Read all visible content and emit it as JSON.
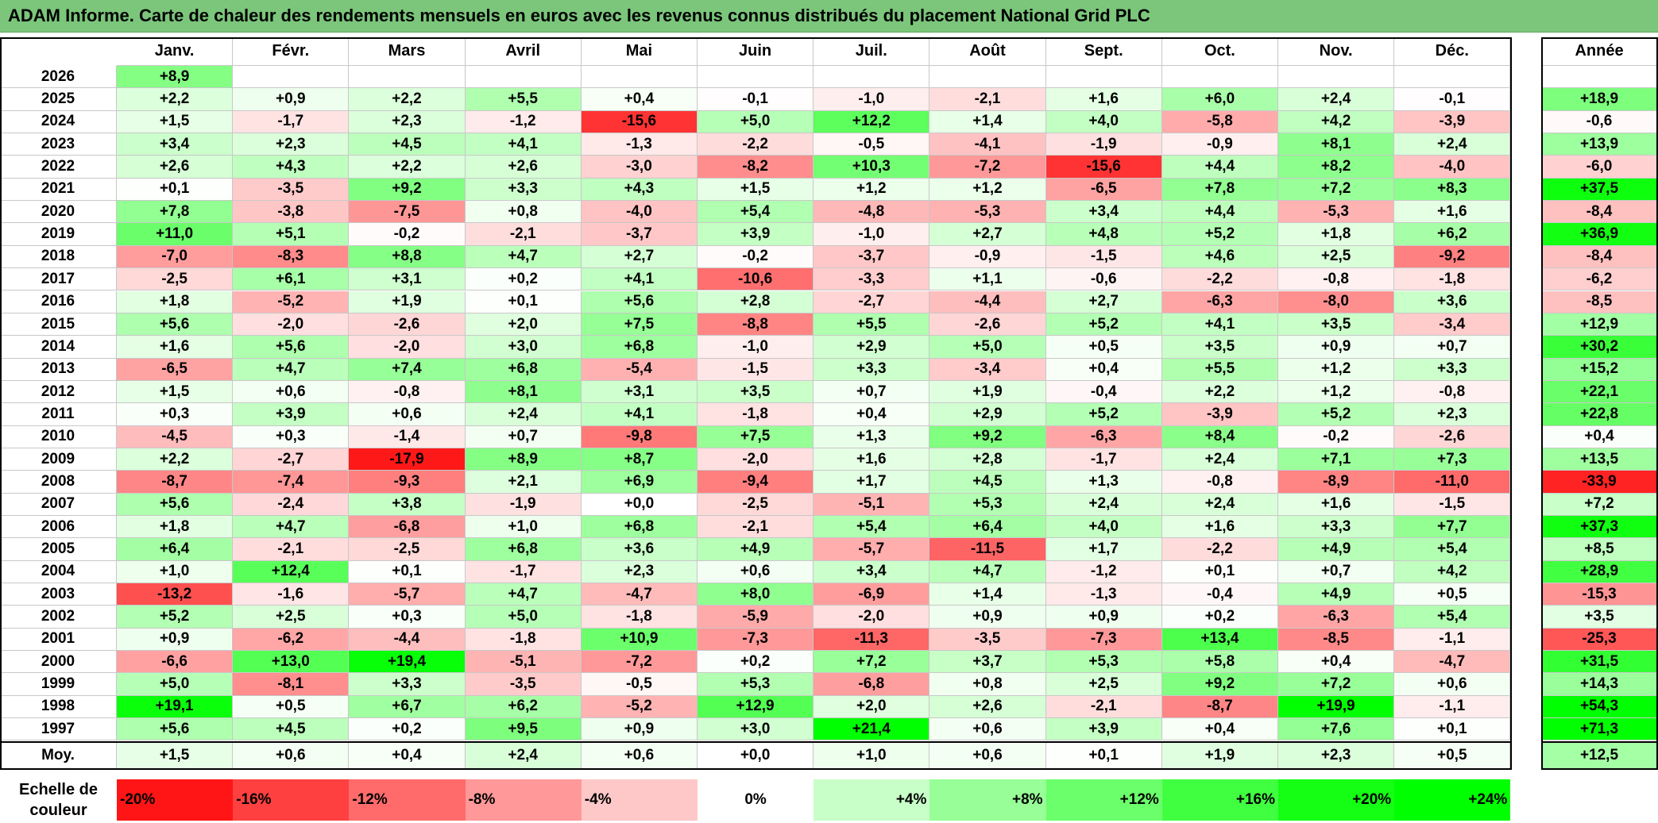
{
  "title": "ADAM Informe. Carte de chaleur des rendements mensuels en euros avec les revenus connus distribués du placement National Grid PLC",
  "chart_data": {
    "type": "heatmap",
    "months": [
      "Janv.",
      "Févr.",
      "Mars",
      "Avril",
      "Mai",
      "Juin",
      "Juil.",
      "Août",
      "Sept.",
      "Oct.",
      "Nov.",
      "Déc."
    ],
    "year_header": "Année",
    "rows": [
      {
        "year": "2026",
        "values": [
          "+8,9",
          "",
          "",
          "",
          "",
          "",
          "",
          "",
          "",
          "",
          "",
          ""
        ],
        "annual": ""
      },
      {
        "year": "2025",
        "values": [
          "+2,2",
          "+0,9",
          "+2,2",
          "+5,5",
          "+0,4",
          "-0,1",
          "-1,0",
          "-2,1",
          "+1,6",
          "+6,0",
          "+2,4",
          "-0,1"
        ],
        "annual": "+18,9"
      },
      {
        "year": "2024",
        "values": [
          "+1,5",
          "-1,7",
          "+2,3",
          "-1,2",
          "-15,6",
          "+5,0",
          "+12,2",
          "+1,4",
          "+4,0",
          "-5,8",
          "+4,2",
          "-3,9"
        ],
        "annual": "-0,6"
      },
      {
        "year": "2023",
        "values": [
          "+3,4",
          "+2,3",
          "+4,5",
          "+4,1",
          "-1,3",
          "-2,2",
          "-0,5",
          "-4,1",
          "-1,9",
          "-0,9",
          "+8,1",
          "+2,4"
        ],
        "annual": "+13,9"
      },
      {
        "year": "2022",
        "values": [
          "+2,6",
          "+4,3",
          "+2,2",
          "+2,6",
          "-3,0",
          "-8,2",
          "+10,3",
          "-7,2",
          "-15,6",
          "+4,4",
          "+8,2",
          "-4,0"
        ],
        "annual": "-6,0"
      },
      {
        "year": "2021",
        "values": [
          "+0,1",
          "-3,5",
          "+9,2",
          "+3,3",
          "+4,3",
          "+1,5",
          "+1,2",
          "+1,2",
          "-6,5",
          "+7,8",
          "+7,2",
          "+8,3"
        ],
        "annual": "+37,5"
      },
      {
        "year": "2020",
        "values": [
          "+7,8",
          "-3,8",
          "-7,5",
          "+0,8",
          "-4,0",
          "+5,4",
          "-4,8",
          "-5,3",
          "+3,4",
          "+4,4",
          "-5,3",
          "+1,6"
        ],
        "annual": "-8,4"
      },
      {
        "year": "2019",
        "values": [
          "+11,0",
          "+5,1",
          "-0,2",
          "-2,1",
          "-3,7",
          "+3,9",
          "-1,0",
          "+2,7",
          "+4,8",
          "+5,2",
          "+1,8",
          "+6,2"
        ],
        "annual": "+36,9"
      },
      {
        "year": "2018",
        "values": [
          "-7,0",
          "-8,3",
          "+8,8",
          "+4,7",
          "+2,7",
          "-0,2",
          "-3,7",
          "-0,9",
          "-1,5",
          "+4,6",
          "+2,5",
          "-9,2"
        ],
        "annual": "-8,4"
      },
      {
        "year": "2017",
        "values": [
          "-2,5",
          "+6,1",
          "+3,1",
          "+0,2",
          "+4,1",
          "-10,6",
          "-3,3",
          "+1,1",
          "-0,6",
          "-2,2",
          "-0,8",
          "-1,8"
        ],
        "annual": "-6,2"
      },
      {
        "year": "2016",
        "values": [
          "+1,8",
          "-5,2",
          "+1,9",
          "+0,1",
          "+5,6",
          "+2,8",
          "-2,7",
          "-4,4",
          "+2,7",
          "-6,3",
          "-8,0",
          "+3,6"
        ],
        "annual": "-8,5"
      },
      {
        "year": "2015",
        "values": [
          "+5,6",
          "-2,0",
          "-2,6",
          "+2,0",
          "+7,5",
          "-8,8",
          "+5,5",
          "-2,6",
          "+5,2",
          "+4,1",
          "+3,5",
          "-3,4"
        ],
        "annual": "+12,9"
      },
      {
        "year": "2014",
        "values": [
          "+1,6",
          "+5,6",
          "-2,0",
          "+3,0",
          "+6,8",
          "-1,0",
          "+2,9",
          "+5,0",
          "+0,5",
          "+3,5",
          "+0,9",
          "+0,7"
        ],
        "annual": "+30,2"
      },
      {
        "year": "2013",
        "values": [
          "-6,5",
          "+4,7",
          "+7,4",
          "+6,8",
          "-5,4",
          "-1,5",
          "+3,3",
          "-3,4",
          "+0,4",
          "+5,5",
          "+1,2",
          "+3,3"
        ],
        "annual": "+15,2"
      },
      {
        "year": "2012",
        "values": [
          "+1,5",
          "+0,6",
          "-0,8",
          "+8,1",
          "+3,1",
          "+3,5",
          "+0,7",
          "+1,9",
          "-0,4",
          "+2,2",
          "+1,2",
          "-0,8"
        ],
        "annual": "+22,1"
      },
      {
        "year": "2011",
        "values": [
          "+0,3",
          "+3,9",
          "+0,6",
          "+2,4",
          "+4,1",
          "-1,8",
          "+0,4",
          "+2,9",
          "+5,2",
          "-3,9",
          "+5,2",
          "+2,3"
        ],
        "annual": "+22,8"
      },
      {
        "year": "2010",
        "values": [
          "-4,5",
          "+0,3",
          "-1,4",
          "+0,7",
          "-9,8",
          "+7,5",
          "+1,3",
          "+9,2",
          "-6,3",
          "+8,4",
          "-0,2",
          "-2,6"
        ],
        "annual": "+0,4"
      },
      {
        "year": "2009",
        "values": [
          "+2,2",
          "-2,7",
          "-17,9",
          "+8,9",
          "+8,7",
          "-2,0",
          "+1,6",
          "+2,8",
          "-1,7",
          "+2,4",
          "+7,1",
          "+7,3"
        ],
        "annual": "+13,5"
      },
      {
        "year": "2008",
        "values": [
          "-8,7",
          "-7,4",
          "-9,3",
          "+2,1",
          "+6,9",
          "-9,4",
          "+1,7",
          "+4,5",
          "+1,3",
          "-0,8",
          "-8,9",
          "-11,0"
        ],
        "annual": "-33,9"
      },
      {
        "year": "2007",
        "values": [
          "+5,6",
          "-2,4",
          "+3,8",
          "-1,9",
          "+0,0",
          "-2,5",
          "-5,1",
          "+5,3",
          "+2,4",
          "+2,4",
          "+1,6",
          "-1,5"
        ],
        "annual": "+7,2"
      },
      {
        "year": "2006",
        "values": [
          "+1,8",
          "+4,7",
          "-6,8",
          "+1,0",
          "+6,8",
          "-2,1",
          "+5,4",
          "+6,4",
          "+4,0",
          "+1,6",
          "+3,3",
          "+7,7"
        ],
        "annual": "+37,3"
      },
      {
        "year": "2005",
        "values": [
          "+6,4",
          "-2,1",
          "-2,5",
          "+6,8",
          "+3,6",
          "+4,9",
          "-5,7",
          "-11,5",
          "+1,7",
          "-2,2",
          "+4,9",
          "+5,4"
        ],
        "annual": "+8,5"
      },
      {
        "year": "2004",
        "values": [
          "+1,0",
          "+12,4",
          "+0,1",
          "-1,7",
          "+2,3",
          "+0,6",
          "+3,4",
          "+4,7",
          "-1,2",
          "+0,1",
          "+0,7",
          "+4,2"
        ],
        "annual": "+28,9"
      },
      {
        "year": "2003",
        "values": [
          "-13,2",
          "-1,6",
          "-5,7",
          "+4,7",
          "-4,7",
          "+8,0",
          "-6,9",
          "+1,4",
          "-1,3",
          "-0,4",
          "+4,9",
          "+0,5"
        ],
        "annual": "-15,3"
      },
      {
        "year": "2002",
        "values": [
          "+5,2",
          "+2,5",
          "+0,3",
          "+5,0",
          "-1,8",
          "-5,9",
          "-2,0",
          "+0,9",
          "+0,9",
          "+0,2",
          "-6,3",
          "+5,4"
        ],
        "annual": "+3,5"
      },
      {
        "year": "2001",
        "values": [
          "+0,9",
          "-6,2",
          "-4,4",
          "-1,8",
          "+10,9",
          "-7,3",
          "-11,3",
          "-3,5",
          "-7,3",
          "+13,4",
          "-8,5",
          "-1,1"
        ],
        "annual": "-25,3"
      },
      {
        "year": "2000",
        "values": [
          "-6,6",
          "+13,0",
          "+19,4",
          "-5,1",
          "-7,2",
          "+0,2",
          "+7,2",
          "+3,7",
          "+5,3",
          "+5,8",
          "+0,4",
          "-4,7"
        ],
        "annual": "+31,5"
      },
      {
        "year": "1999",
        "values": [
          "+5,0",
          "-8,1",
          "+3,3",
          "-3,5",
          "-0,5",
          "+5,3",
          "-6,8",
          "+0,8",
          "+2,5",
          "+9,2",
          "+7,2",
          "+0,6"
        ],
        "annual": "+14,3"
      },
      {
        "year": "1998",
        "values": [
          "+19,1",
          "+0,5",
          "+6,7",
          "+6,2",
          "-5,2",
          "+12,9",
          "+2,0",
          "+2,6",
          "-2,1",
          "-8,7",
          "+19,9",
          "-1,1"
        ],
        "annual": "+54,3"
      },
      {
        "year": "1997",
        "values": [
          "+5,6",
          "+4,5",
          "+0,2",
          "+9,5",
          "+0,9",
          "+3,0",
          "+21,4",
          "+0,6",
          "+3,9",
          "+0,4",
          "+7,6",
          "+0,1"
        ],
        "annual": "+71,3"
      }
    ],
    "average": {
      "label": "Moy.",
      "values": [
        "+1,5",
        "+0,6",
        "+0,4",
        "+2,4",
        "+0,6",
        "+0,0",
        "+1,0",
        "+0,6",
        "+0,1",
        "+1,9",
        "+2,3",
        "+0,5"
      ],
      "annual": "+12,5"
    },
    "legend": {
      "label": "Echelle de couleur",
      "stops": [
        "-20%",
        "-16%",
        "-12%",
        "-8%",
        "-4%",
        "0%",
        "+4%",
        "+8%",
        "+12%",
        "+16%",
        "+20%",
        "+24%"
      ],
      "stop_values": [
        -20,
        -16,
        -12,
        -8,
        -4,
        0,
        4,
        8,
        12,
        16,
        20,
        24
      ]
    },
    "colors": {
      "negative": "#ff0000",
      "neutral": "#ffffff",
      "positive": "#00ff00",
      "title_bg": "#7bc67b"
    }
  }
}
